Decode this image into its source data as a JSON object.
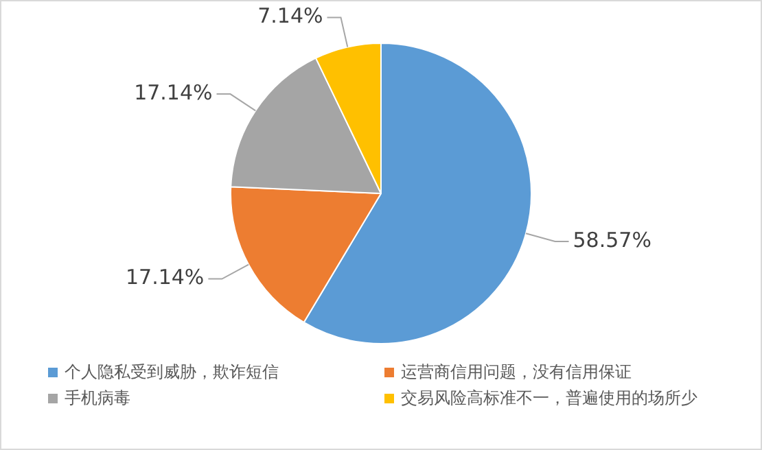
{
  "chart_data": {
    "type": "pie",
    "categories": [
      "个人隐私受到威胁，欺诈短信",
      "运营商信用问题，没有信用保证",
      "手机病毒",
      "交易风险高标准不一，普遍使用的场所少"
    ],
    "values": [
      58.57,
      17.14,
      17.14,
      7.14
    ],
    "colors": [
      "#5b9bd5",
      "#ed7d31",
      "#a5a5a5",
      "#ffc000"
    ],
    "value_labels": [
      "58.57%",
      "17.14%",
      "17.14%",
      "7.14%"
    ],
    "legend": "bottom"
  }
}
